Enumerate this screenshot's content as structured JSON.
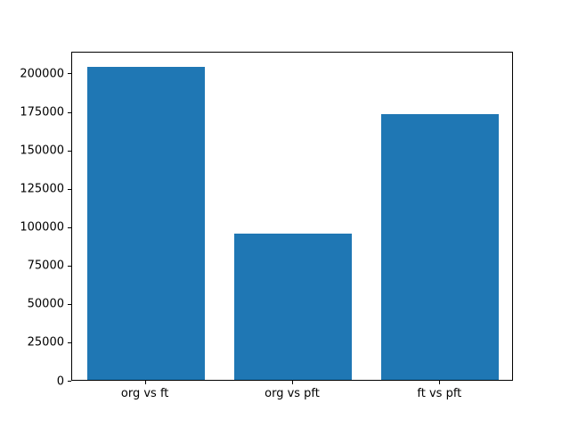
{
  "chart_data": {
    "type": "bar",
    "categories": [
      "org vs ft",
      "org vs pft",
      "ft vs pft"
    ],
    "values": [
      204000,
      95000,
      173000
    ],
    "title": "",
    "xlabel": "",
    "ylabel": "",
    "ylim": [
      0,
      214200
    ],
    "yticks": [
      0,
      25000,
      50000,
      75000,
      100000,
      125000,
      150000,
      175000,
      200000
    ],
    "bar_color": "#1f77b4",
    "bar_width_fraction": 0.8,
    "grid": false,
    "legend": null
  },
  "colors": {
    "background": "#ffffff",
    "axis": "#000000",
    "tick_text": "#000000"
  }
}
